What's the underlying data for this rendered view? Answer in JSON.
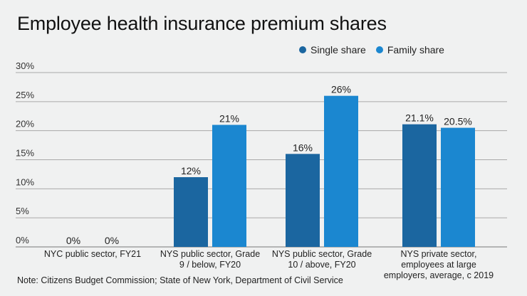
{
  "chart_data": {
    "type": "bar",
    "title": "Employee health insurance premium shares",
    "xlabel": "",
    "ylabel": "",
    "ylim": [
      0,
      30
    ],
    "yticks": [
      "0%",
      "5%",
      "10%",
      "15%",
      "20%",
      "25%",
      "30%"
    ],
    "ytick_values": [
      0,
      5,
      10,
      15,
      20,
      25,
      30
    ],
    "grid": true,
    "legend_position": "top-right",
    "categories": [
      "NYC public sector, FY21",
      "NYS public sector, Grade 9 / below, FY20",
      "NYS public sector, Grade 10 / above, FY20",
      "NYS private sector, employees at large employers, average, c 2019"
    ],
    "category_lines": [
      [
        "NYC public sector, FY21"
      ],
      [
        "NYS public sector, Grade",
        "9 / below, FY20"
      ],
      [
        "NYS public sector, Grade",
        "10 / above, FY20"
      ],
      [
        "NYS private sector,",
        "employees at large",
        "employers, average, c 2019"
      ]
    ],
    "series": [
      {
        "name": "Single share",
        "color": "#1b66a0",
        "values": [
          0,
          12,
          16,
          21.1
        ],
        "labels": [
          "0%",
          "12%",
          "16%",
          "21.1%"
        ]
      },
      {
        "name": "Family share",
        "color": "#1b87d0",
        "values": [
          0,
          21,
          26,
          20.5
        ],
        "labels": [
          "0%",
          "21%",
          "26%",
          "20.5%"
        ]
      }
    ],
    "note": "Note: Citizens Budget Commission; State of New York, Department of Civil Service"
  }
}
